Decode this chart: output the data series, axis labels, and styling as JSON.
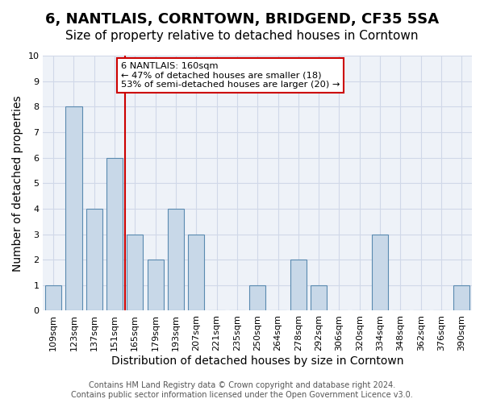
{
  "title": "6, NANTLAIS, CORNTOWN, BRIDGEND, CF35 5SA",
  "subtitle": "Size of property relative to detached houses in Corntown",
  "xlabel": "Distribution of detached houses by size in Corntown",
  "ylabel": "Number of detached properties",
  "categories": [
    "109sqm",
    "123sqm",
    "137sqm",
    "151sqm",
    "165sqm",
    "179sqm",
    "193sqm",
    "207sqm",
    "221sqm",
    "235sqm",
    "250sqm",
    "264sqm",
    "278sqm",
    "292sqm",
    "306sqm",
    "320sqm",
    "334sqm",
    "348sqm",
    "362sqm",
    "376sqm",
    "390sqm"
  ],
  "values": [
    1,
    8,
    4,
    6,
    3,
    2,
    4,
    3,
    0,
    0,
    1,
    0,
    2,
    1,
    0,
    0,
    3,
    0,
    0,
    0,
    1
  ],
  "bar_color": "#c8d8e8",
  "bar_edge_color": "#5a8ab0",
  "vline_x": 3.5,
  "vline_color": "#cc0000",
  "annotation_text_line1": "6 NANTLAIS: 160sqm",
  "annotation_text_line2": "← 47% of detached houses are smaller (18)",
  "annotation_text_line3": "53% of semi-detached houses are larger (20) →",
  "annotation_box_color": "#cc0000",
  "ylim": [
    0,
    10
  ],
  "yticks": [
    0,
    1,
    2,
    3,
    4,
    5,
    6,
    7,
    8,
    9,
    10
  ],
  "grid_color": "#d0d8e8",
  "background_color": "#eef2f8",
  "footer_line1": "Contains HM Land Registry data © Crown copyright and database right 2024.",
  "footer_line2": "Contains public sector information licensed under the Open Government Licence v3.0.",
  "title_fontsize": 13,
  "subtitle_fontsize": 11,
  "xlabel_fontsize": 10,
  "ylabel_fontsize": 10,
  "tick_fontsize": 8,
  "footer_fontsize": 7
}
